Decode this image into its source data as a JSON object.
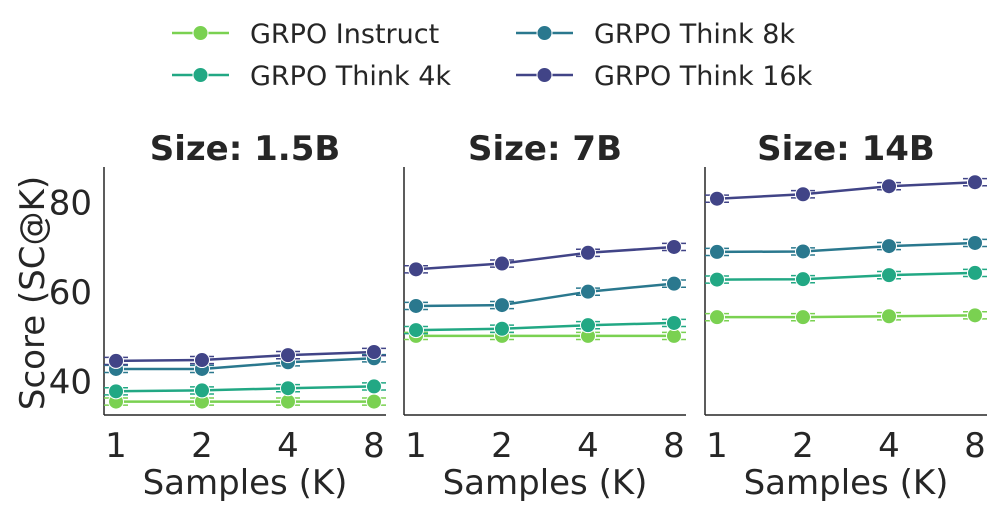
{
  "chart_data": {
    "type": "line",
    "legend": {
      "placement": "top-center",
      "entries": [
        {
          "name": "GRPO Instruct",
          "color": "#7ad151"
        },
        {
          "name": "GRPO Think 8k",
          "color": "#2a788e"
        },
        {
          "name": "GRPO Think 4k",
          "color": "#22a884"
        },
        {
          "name": "GRPO Think 16k",
          "color": "#414487"
        }
      ]
    },
    "x_categories": [
      "1",
      "2",
      "4",
      "8"
    ],
    "xlabel": "Samples (K)",
    "ylabel": "Score (SC@K)",
    "ylim": [
      32.5,
      88
    ],
    "yticks": [
      "40",
      "60",
      "80"
    ],
    "panels": [
      {
        "title": "Size: 1.5B",
        "series": [
          {
            "name": "GRPO Instruct",
            "color": "#7ad151",
            "values": [
              35.5,
              35.5,
              35.5,
              35.5
            ]
          },
          {
            "name": "GRPO Think 4k",
            "color": "#22a884",
            "values": [
              37.8,
              38.0,
              38.5,
              38.9
            ]
          },
          {
            "name": "GRPO Think 8k",
            "color": "#2a788e",
            "values": [
              42.8,
              42.8,
              44.3,
              45.2
            ]
          },
          {
            "name": "GRPO Think 16k",
            "color": "#414487",
            "values": [
              44.6,
              44.8,
              45.9,
              46.6
            ]
          }
        ]
      },
      {
        "title": "Size: 7B",
        "series": [
          {
            "name": "GRPO Instruct",
            "color": "#7ad151",
            "values": [
              50.2,
              50.2,
              50.2,
              50.2
            ]
          },
          {
            "name": "GRPO Think 4k",
            "color": "#22a884",
            "values": [
              51.5,
              51.8,
              52.6,
              53.1
            ]
          },
          {
            "name": "GRPO Think 8k",
            "color": "#2a788e",
            "values": [
              56.9,
              57.1,
              60.1,
              61.9
            ]
          },
          {
            "name": "GRPO Think 16k",
            "color": "#414487",
            "values": [
              65.1,
              66.4,
              68.8,
              70.1
            ]
          }
        ]
      },
      {
        "title": "Size: 14B",
        "series": [
          {
            "name": "GRPO Instruct",
            "color": "#7ad151",
            "values": [
              54.4,
              54.4,
              54.6,
              54.8
            ]
          },
          {
            "name": "GRPO Think 4k",
            "color": "#22a884",
            "values": [
              62.8,
              62.9,
              63.8,
              64.3
            ]
          },
          {
            "name": "GRPO Think 8k",
            "color": "#2a788e",
            "values": [
              69.0,
              69.1,
              70.3,
              71.0
            ]
          },
          {
            "name": "GRPO Think 16k",
            "color": "#414487",
            "values": [
              80.9,
              81.9,
              83.7,
              84.6
            ]
          }
        ]
      }
    ]
  }
}
